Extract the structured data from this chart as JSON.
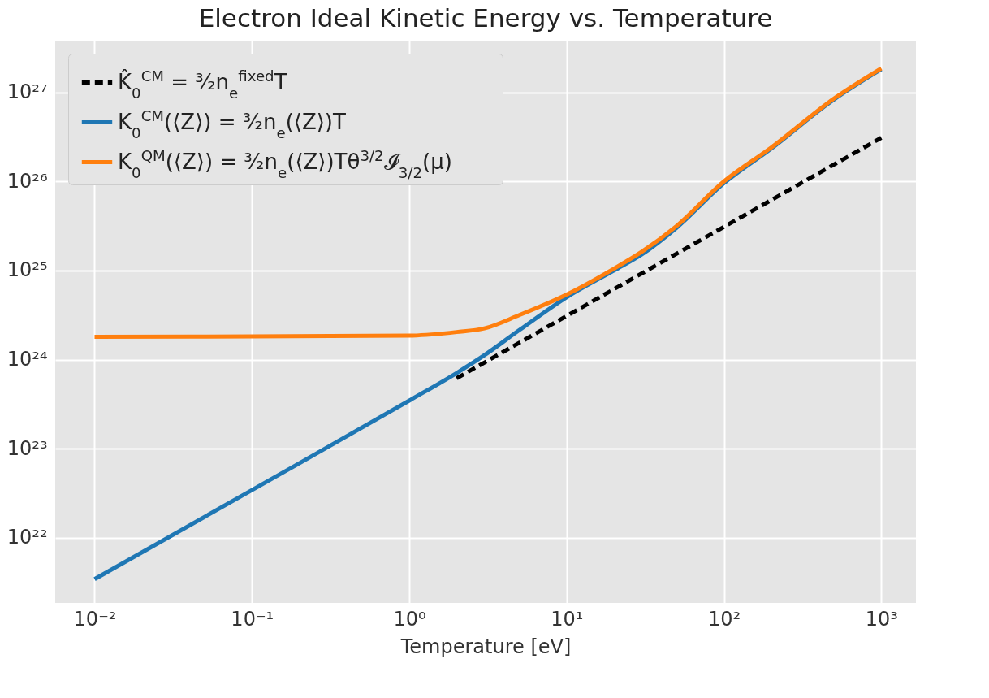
{
  "chart_data": {
    "type": "line",
    "title": "Electron Ideal Kinetic Energy vs. Temperature",
    "xlabel": "Temperature [eV]",
    "log": "xy",
    "grid": true,
    "legend": "top left",
    "marker": "none",
    "xlim": [
      0.00562,
      1660
    ],
    "ylim": [
      1.86e+21,
      3.8e+27
    ],
    "xticks": [
      {
        "value": 0.01,
        "label": "10⁻²"
      },
      {
        "value": 0.1,
        "label": "10⁻¹"
      },
      {
        "value": 1,
        "label": "10⁰"
      },
      {
        "value": 10,
        "label": "10¹"
      },
      {
        "value": 100,
        "label": "10²"
      },
      {
        "value": 1000,
        "label": "10³"
      }
    ],
    "yticks": [
      {
        "value": 1e+22,
        "label": "10²²"
      },
      {
        "value": 1e+23,
        "label": "10²³"
      },
      {
        "value": 1e+24,
        "label": "10²⁴"
      },
      {
        "value": 1e+25,
        "label": "10²⁵"
      },
      {
        "value": 1e+26,
        "label": "10²⁶"
      },
      {
        "value": 1e+27,
        "label": "10²⁷"
      }
    ],
    "series": [
      {
        "name": "K̂$_{0}$$^{CM}$ = ³⁄₂n$_{e}$$^{fixed}$T",
        "color": "#000000",
        "line_style": "dashed",
        "x": [
          2,
          10,
          100,
          1000
        ],
        "values": [
          6.18e+23,
          3.09e+24,
          3.09e+25,
          3.09e+26
        ]
      },
      {
        "name": "K$_{0}$$^{CM}$(⟨Z⟩) = ³⁄₂n$_{e}$(⟨Z⟩)T",
        "color": "#1f77b4",
        "line_style": "solid",
        "x": [
          0.01,
          0.1,
          1,
          2,
          3,
          5,
          10,
          20,
          30,
          50,
          100,
          200,
          500,
          1000
        ],
        "values": [
          3.44e+21,
          3.44e+22,
          3.47e+23,
          7.08e+23,
          1.12e+24,
          2.14e+24,
          5.01e+24,
          1e+25,
          1.51e+25,
          3.02e+25,
          9.55e+25,
          2.34e+26,
          8.32e+26,
          1.82e+27
        ]
      },
      {
        "name": "K$_{0}$$^{QM}$(⟨Z⟩) = ³⁄₂n$_{e}$(⟨Z⟩)Tθ$^{3/2}$𝓘$_{3/2}$(μ)",
        "color": "#ff7f0e",
        "line_style": "solid",
        "x": [
          0.01,
          0.1,
          1,
          2,
          3,
          5,
          10,
          20,
          30,
          50,
          100,
          200,
          500,
          1000
        ],
        "values": [
          1.8e+24,
          1.82e+24,
          1.86e+24,
          2.04e+24,
          2.24e+24,
          3.16e+24,
          5.37e+24,
          1.05e+25,
          1.62e+25,
          3.16e+25,
          1e+26,
          2.4e+26,
          8.51e+26,
          1.86e+27
        ]
      }
    ]
  }
}
